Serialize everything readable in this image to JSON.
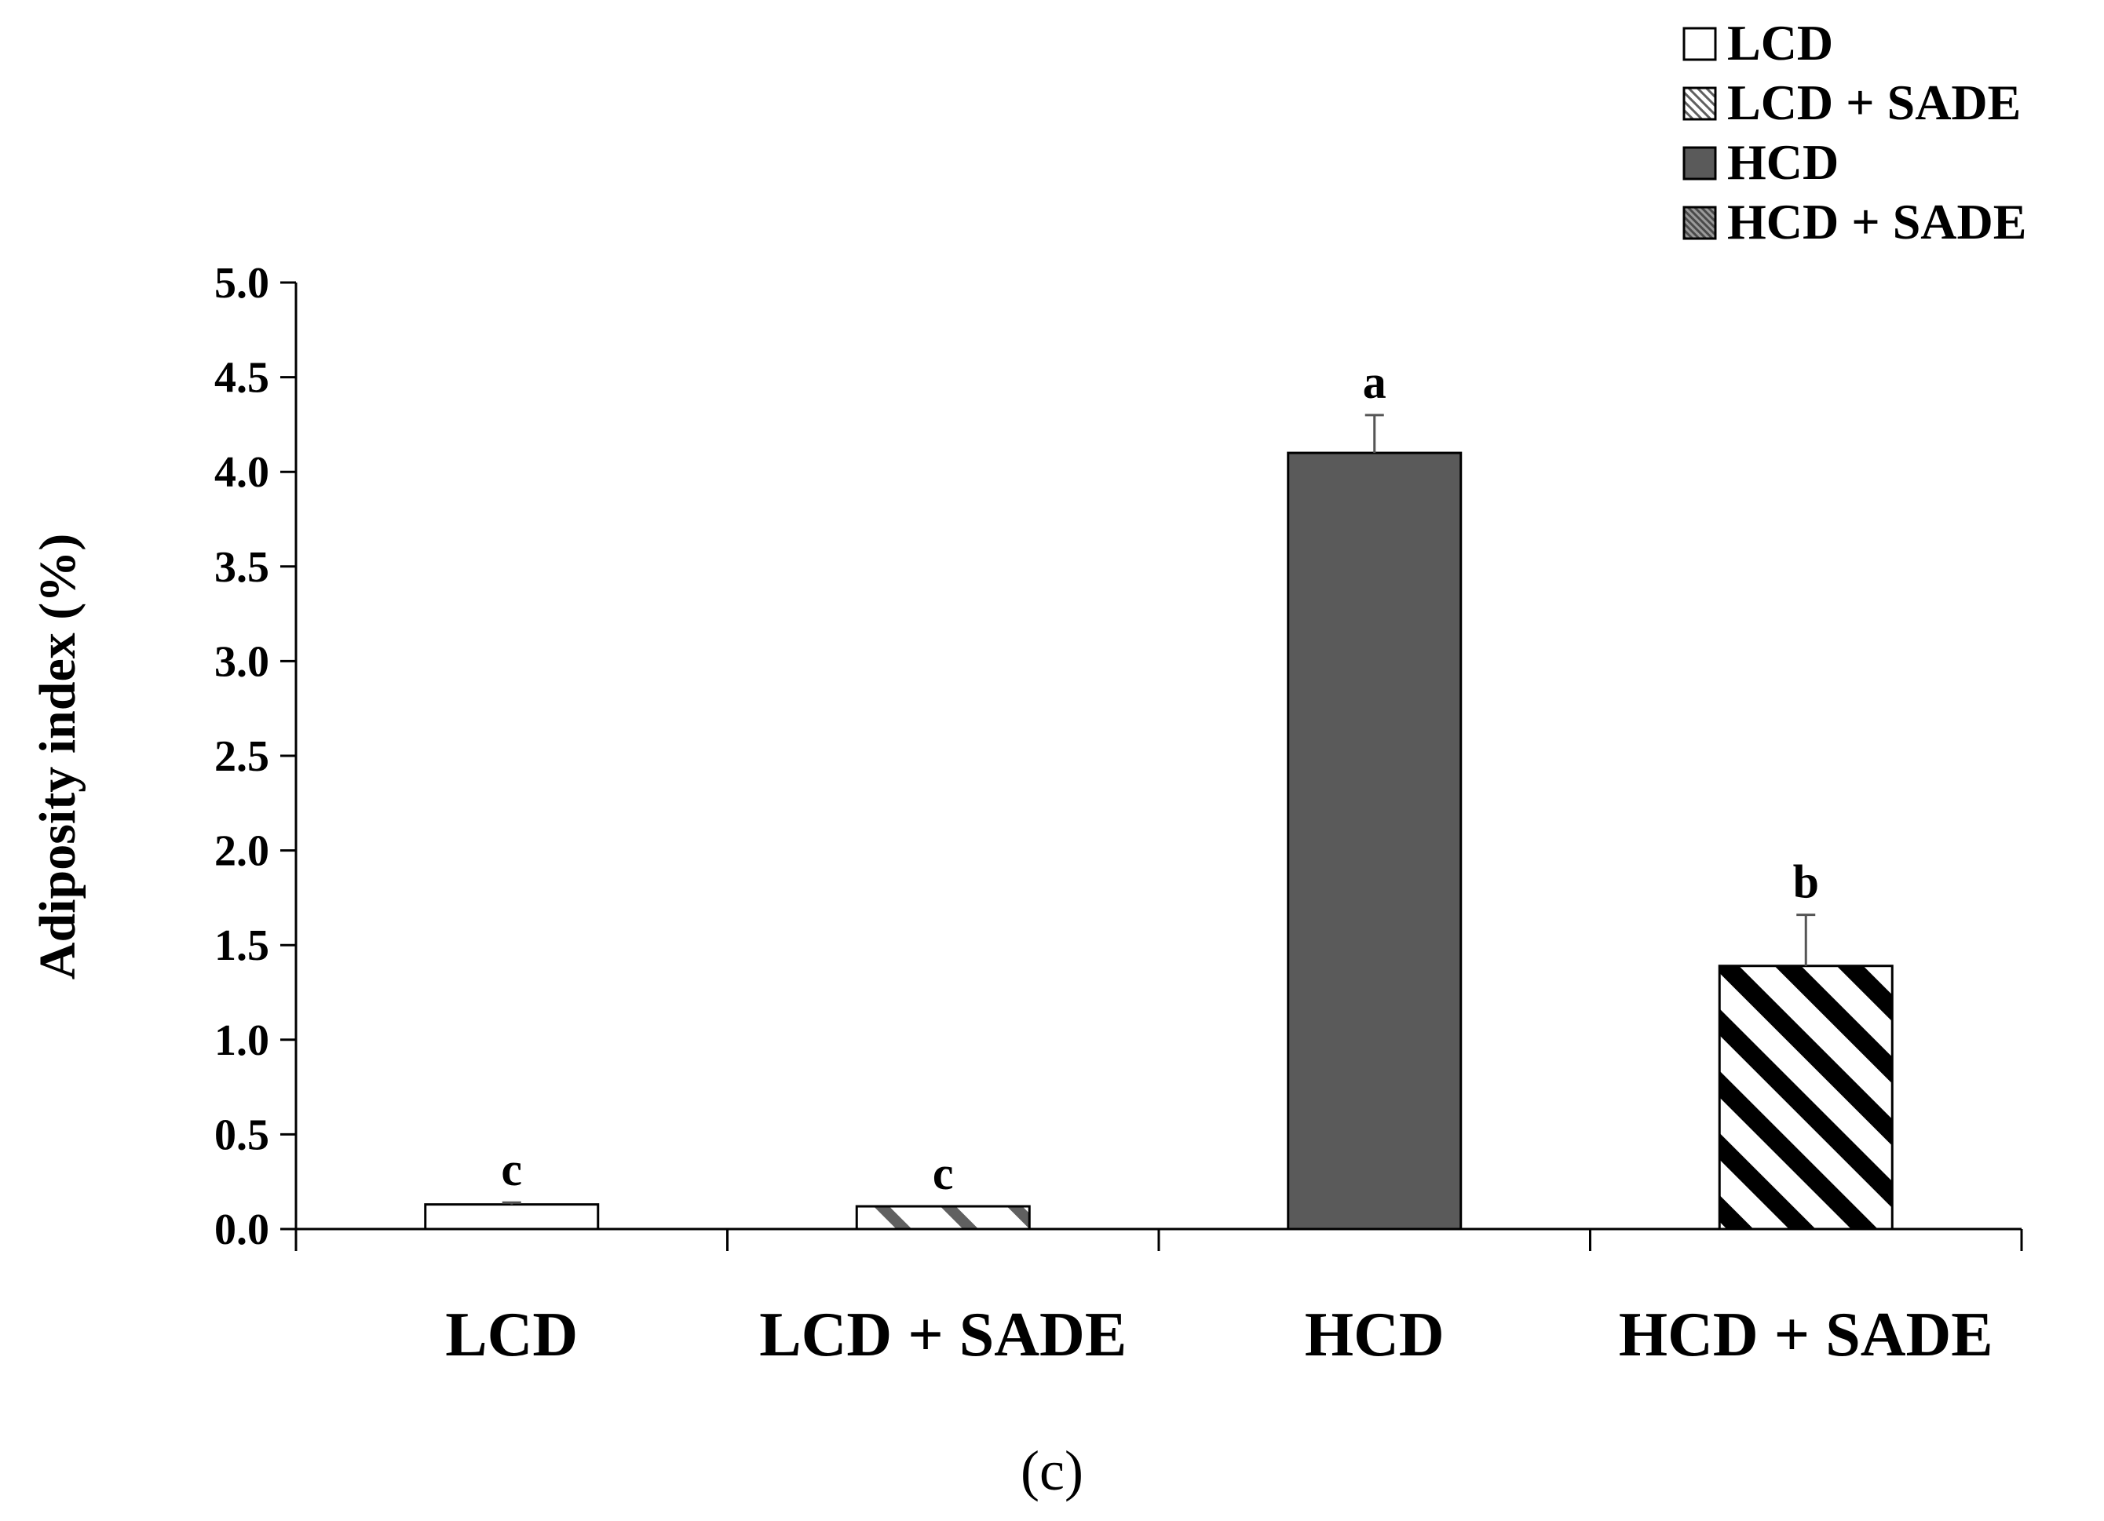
{
  "chart_data": {
    "type": "bar",
    "categories": [
      "LCD",
      "LCD + SADE",
      "HCD",
      "HCD + SADE"
    ],
    "series": [
      {
        "values": [
          0.13,
          0.12,
          4.1,
          1.39
        ],
        "errors": [
          0.01,
          0.0,
          0.2,
          0.27
        ],
        "significance": [
          "c",
          "c",
          "a",
          "b"
        ]
      }
    ],
    "legend": {
      "placement": "top-right",
      "entries": [
        {
          "label": "LCD",
          "pattern": "white"
        },
        {
          "label": "LCD + SADE",
          "pattern": "light-hatch"
        },
        {
          "label": "HCD",
          "pattern": "dark-gray"
        },
        {
          "label": "HCD + SADE",
          "pattern": "dark-hatch"
        }
      ]
    },
    "ylabel": "Adiposity index (%)",
    "xlabel": "",
    "ylim": [
      0,
      5.0
    ],
    "yticks": [
      "0.0",
      "0.5",
      "1.0",
      "1.5",
      "2.0",
      "2.5",
      "3.0",
      "3.5",
      "4.0",
      "4.5",
      "5.0"
    ],
    "grid": false,
    "colors": {
      "dark_bar": "#5a5a5a",
      "axis": "#000000",
      "error_bar": "#555555"
    }
  },
  "panel_label": "(c)"
}
